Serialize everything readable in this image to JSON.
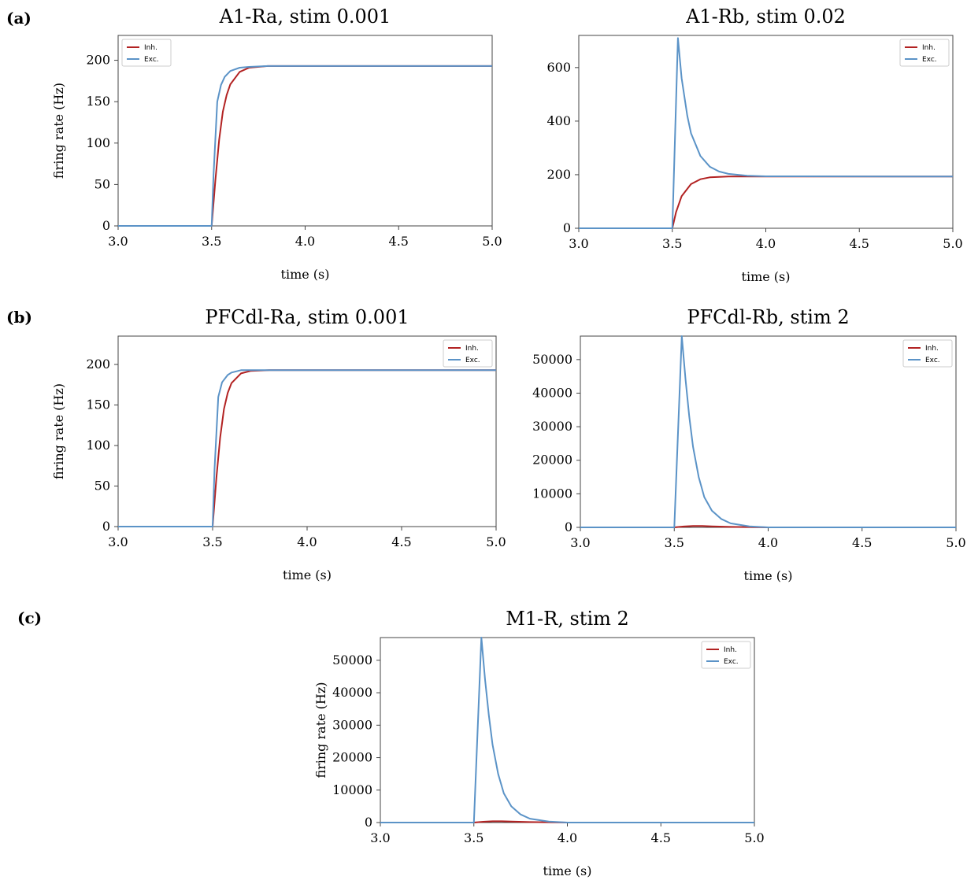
{
  "colors": {
    "inh": "#b22222",
    "exc": "#5b93c7",
    "axis": "#444444"
  },
  "panel_labels": [
    "(a)",
    "(b)",
    "(c)"
  ],
  "chart_data": [
    {
      "type": "line",
      "title": "A1-Ra, stim 0.001",
      "xlabel": "time (s)",
      "ylabel": "firing rate (Hz)",
      "xlim": [
        3.0,
        5.0
      ],
      "ylim": [
        0,
        230
      ],
      "xticks": [
        3.0,
        3.5,
        4.0,
        4.5,
        5.0
      ],
      "xtick_labels": [
        "3.0",
        "3.5",
        "4.0",
        "4.5",
        "5.0"
      ],
      "yticks": [
        0,
        50,
        100,
        150,
        200
      ],
      "ytick_labels": [
        "0",
        "50",
        "100",
        "150",
        "200"
      ],
      "legend": "top-left",
      "series": [
        {
          "name": "Inh.",
          "x": [
            3.0,
            3.5,
            3.52,
            3.54,
            3.56,
            3.58,
            3.6,
            3.65,
            3.7,
            3.8,
            3.9,
            4.0,
            5.0
          ],
          "y": [
            0,
            0,
            55,
            104,
            138,
            158,
            171,
            186,
            191,
            193,
            193,
            193,
            193
          ]
        },
        {
          "name": "Exc.",
          "x": [
            3.0,
            3.5,
            3.51,
            3.53,
            3.55,
            3.57,
            3.6,
            3.65,
            3.7,
            3.8,
            4.0,
            5.0
          ],
          "y": [
            0,
            0,
            60,
            150,
            170,
            180,
            187,
            191,
            192,
            193,
            193,
            193
          ]
        }
      ]
    },
    {
      "type": "line",
      "title": "A1-Rb, stim 0.02",
      "xlabel": "time (s)",
      "ylabel": "",
      "xlim": [
        3.0,
        5.0
      ],
      "ylim": [
        0,
        720
      ],
      "xticks": [
        3.0,
        3.5,
        4.0,
        4.5,
        5.0
      ],
      "xtick_labels": [
        "3.0",
        "3.5",
        "4.0",
        "4.5",
        "5.0"
      ],
      "yticks": [
        0,
        200,
        400,
        600
      ],
      "ytick_labels": [
        "0",
        "200",
        "400",
        "600"
      ],
      "legend": "top-right",
      "series": [
        {
          "name": "Inh.",
          "x": [
            3.0,
            3.5,
            3.52,
            3.55,
            3.6,
            3.65,
            3.7,
            3.8,
            4.0,
            5.0
          ],
          "y": [
            0,
            0,
            60,
            120,
            165,
            183,
            190,
            193,
            193,
            193
          ]
        },
        {
          "name": "Exc.",
          "x": [
            3.0,
            3.5,
            3.53,
            3.55,
            3.58,
            3.6,
            3.65,
            3.7,
            3.75,
            3.8,
            3.9,
            4.0,
            5.0
          ],
          "y": [
            0,
            0,
            710,
            560,
            420,
            355,
            270,
            230,
            212,
            203,
            196,
            194,
            193
          ]
        }
      ]
    },
    {
      "type": "line",
      "title": "PFCdl-Ra, stim 0.001",
      "xlabel": "time (s)",
      "ylabel": "firing rate (Hz)",
      "xlim": [
        3.0,
        5.0
      ],
      "ylim": [
        0,
        235
      ],
      "xticks": [
        3.0,
        3.5,
        4.0,
        4.5,
        5.0
      ],
      "xtick_labels": [
        "3.0",
        "3.5",
        "4.0",
        "4.5",
        "5.0"
      ],
      "yticks": [
        0,
        50,
        100,
        150,
        200
      ],
      "ytick_labels": [
        "0",
        "50",
        "100",
        "150",
        "200"
      ],
      "legend": "top-right",
      "series": [
        {
          "name": "Inh.",
          "x": [
            3.0,
            3.5,
            3.52,
            3.54,
            3.56,
            3.58,
            3.6,
            3.65,
            3.7,
            3.8,
            4.0,
            5.0
          ],
          "y": [
            0,
            0,
            60,
            110,
            145,
            165,
            177,
            189,
            192,
            193,
            193,
            193
          ]
        },
        {
          "name": "Exc.",
          "x": [
            3.0,
            3.5,
            3.51,
            3.53,
            3.55,
            3.58,
            3.6,
            3.65,
            3.7,
            3.8,
            4.0,
            5.0
          ],
          "y": [
            0,
            0,
            70,
            160,
            178,
            187,
            190,
            193,
            193,
            193,
            193,
            193
          ]
        }
      ]
    },
    {
      "type": "line",
      "title": "PFCdl-Rb, stim 2",
      "xlabel": "time (s)",
      "ylabel": "",
      "xlim": [
        3.0,
        5.0
      ],
      "ylim": [
        0,
        57000
      ],
      "xticks": [
        3.0,
        3.5,
        4.0,
        4.5,
        5.0
      ],
      "xtick_labels": [
        "3.0",
        "3.5",
        "4.0",
        "4.5",
        "5.0"
      ],
      "yticks": [
        0,
        10000,
        20000,
        30000,
        40000,
        50000
      ],
      "ytick_labels": [
        "0",
        "10000",
        "20000",
        "30000",
        "40000",
        "50000"
      ],
      "legend": "top-right",
      "series": [
        {
          "name": "Inh.",
          "x": [
            3.0,
            3.5,
            3.55,
            3.6,
            3.65,
            3.7,
            3.8,
            4.0,
            5.0
          ],
          "y": [
            0,
            0,
            250,
            400,
            400,
            300,
            150,
            0,
            0
          ]
        },
        {
          "name": "Exc.",
          "x": [
            3.0,
            3.5,
            3.54,
            3.56,
            3.58,
            3.6,
            3.63,
            3.66,
            3.7,
            3.75,
            3.8,
            3.9,
            4.0,
            5.0
          ],
          "y": [
            0,
            0,
            57000,
            44000,
            33000,
            24000,
            15000,
            9000,
            5000,
            2500,
            1200,
            300,
            0,
            0
          ]
        }
      ]
    },
    {
      "type": "line",
      "title": "M1-R, stim 2",
      "xlabel": "time (s)",
      "ylabel": "firing rate (Hz)",
      "xlim": [
        3.0,
        5.0
      ],
      "ylim": [
        0,
        57000
      ],
      "xticks": [
        3.0,
        3.5,
        4.0,
        4.5,
        5.0
      ],
      "xtick_labels": [
        "3.0",
        "3.5",
        "4.0",
        "4.5",
        "5.0"
      ],
      "yticks": [
        0,
        10000,
        20000,
        30000,
        40000,
        50000
      ],
      "ytick_labels": [
        "0",
        "10000",
        "20000",
        "30000",
        "40000",
        "50000"
      ],
      "legend": "top-right",
      "series": [
        {
          "name": "Inh.",
          "x": [
            3.0,
            3.5,
            3.55,
            3.6,
            3.65,
            3.7,
            3.8,
            4.0,
            5.0
          ],
          "y": [
            0,
            0,
            250,
            400,
            400,
            300,
            150,
            0,
            0
          ]
        },
        {
          "name": "Exc.",
          "x": [
            3.0,
            3.5,
            3.54,
            3.56,
            3.58,
            3.6,
            3.63,
            3.66,
            3.7,
            3.75,
            3.8,
            3.9,
            4.0,
            5.0
          ],
          "y": [
            0,
            0,
            57000,
            44000,
            33000,
            24000,
            15000,
            9000,
            5000,
            2500,
            1200,
            300,
            0,
            0
          ]
        }
      ]
    }
  ]
}
